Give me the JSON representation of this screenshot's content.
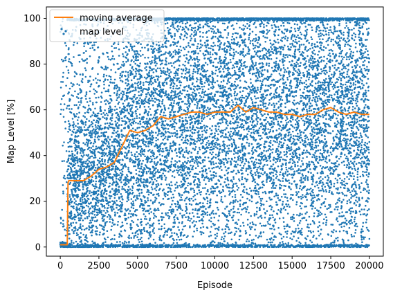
{
  "chart_data": {
    "type": "scatter",
    "xlabel": "Episode",
    "ylabel": "Map Level [%]",
    "xlim": [
      -900,
      20900
    ],
    "ylim": [
      -4,
      105
    ],
    "xticks": [
      0,
      2500,
      5000,
      7500,
      10000,
      12500,
      15000,
      17500,
      20000
    ],
    "yticks": [
      0,
      20,
      40,
      60,
      80,
      100
    ],
    "grid": false,
    "legend_position": "top-left",
    "legend": [
      {
        "label": "moving average",
        "kind": "line",
        "color": "#ff7f0e"
      },
      {
        "label": "map level",
        "kind": "points",
        "color": "#1f77b4"
      }
    ],
    "series": [
      {
        "name": "moving average",
        "kind": "line",
        "color": "#ff7f0e",
        "x": [
          0,
          450,
          500,
          550,
          1000,
          1500,
          2000,
          2500,
          3000,
          3500,
          4000,
          4500,
          5000,
          5500,
          6000,
          6500,
          7000,
          7500,
          8000,
          8500,
          9000,
          9500,
          10000,
          10500,
          11000,
          11500,
          12000,
          12500,
          13000,
          13500,
          14000,
          14500,
          15000,
          15500,
          16000,
          16500,
          17000,
          17500,
          18000,
          18500,
          19000,
          19500,
          20000
        ],
        "y": [
          1,
          1,
          28,
          29,
          29,
          29,
          31,
          34,
          35,
          37,
          44,
          51,
          50,
          51,
          53,
          57,
          56,
          57,
          58,
          59,
          59,
          58,
          59,
          59,
          59,
          62,
          59,
          61,
          60,
          59,
          59,
          58,
          58,
          57,
          58,
          58,
          60,
          61,
          59,
          58,
          59,
          58,
          58
        ]
      },
      {
        "name": "map level",
        "kind": "scatter",
        "color": "#1f77b4",
        "count": 12000,
        "x_range": [
          0,
          20000
        ],
        "y_range": [
          0,
          100
        ]
      }
    ]
  }
}
